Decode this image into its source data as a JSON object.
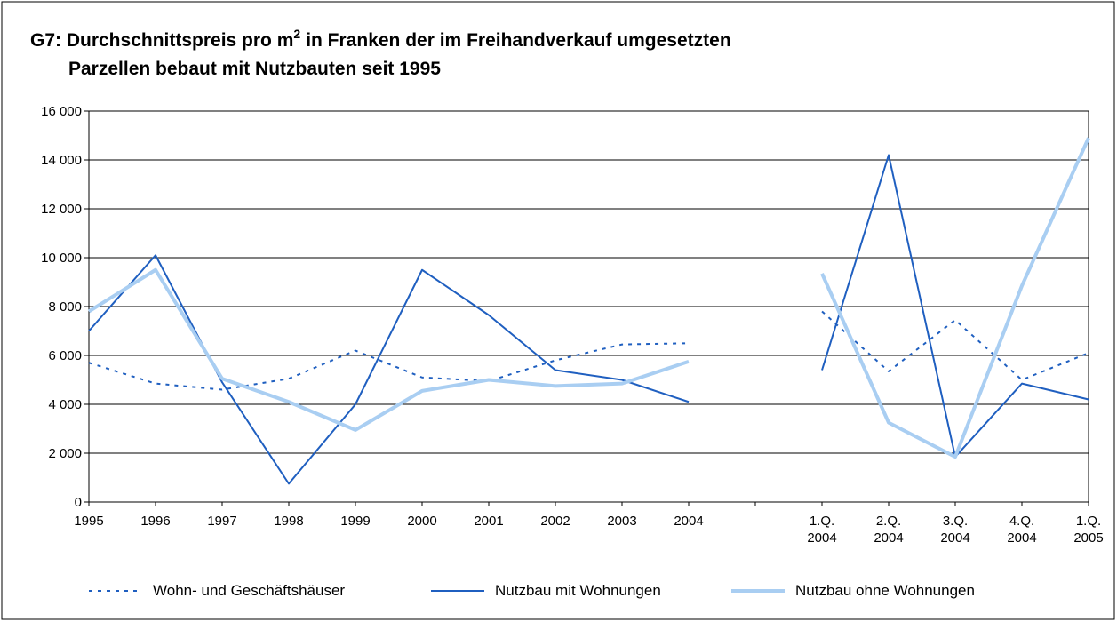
{
  "chart_data": {
    "type": "line",
    "title": {
      "line1_start": "G7: Durchschnittspreis pro m",
      "line1_sup": "2",
      "line1_end": "in Franken der im Freihandverkauf umgesetzten",
      "line2": "Parzellen bebaut mit Nutzbauten seit 1995"
    },
    "categories": [
      "1995",
      "1996",
      "1997",
      "1998",
      "1999",
      "2000",
      "2001",
      "2002",
      "2003",
      "2004",
      null,
      "1.Q. 2004",
      "2.Q. 2004",
      "3.Q. 2004",
      "4.Q. 2004",
      "1.Q. 2005"
    ],
    "series": [
      {
        "name": "Wohn- und Geschäftshäuser",
        "color": "#1f5fc0",
        "dash": true,
        "width": 2,
        "values": [
          5700,
          4850,
          4600,
          5050,
          6200,
          5100,
          4950,
          5800,
          6450,
          6500,
          null,
          7800,
          5350,
          7450,
          5000,
          6100
        ]
      },
      {
        "name": "Nutzbau mit Wohnungen",
        "color": "#1f5fc0",
        "dash": false,
        "width": 2,
        "values": [
          7000,
          10100,
          4900,
          750,
          4000,
          9500,
          7650,
          5400,
          5000,
          4100,
          null,
          5400,
          14200,
          1850,
          4850,
          4200
        ]
      },
      {
        "name": "Nutzbau ohne Wohnungen",
        "color": "#a9cef2",
        "dash": false,
        "width": 4,
        "values": [
          7800,
          9500,
          5050,
          4100,
          2950,
          4550,
          5000,
          4750,
          4850,
          5750,
          null,
          9350,
          3250,
          1850,
          8850,
          14900
        ]
      }
    ],
    "ylim": [
      0,
      16000
    ],
    "yticks": [
      0,
      {
        "value": 2000,
        "label": "2 000"
      },
      {
        "value": 4000,
        "label": "4 000"
      },
      {
        "value": 6000,
        "label": "6 000"
      },
      {
        "value": 8000,
        "label": "8 000"
      },
      {
        "value": 10000,
        "label": "10 000"
      },
      {
        "value": 12000,
        "label": "12 000"
      },
      {
        "value": 14000,
        "label": "14 000"
      },
      {
        "value": 16000,
        "label": "16 000"
      }
    ],
    "grid": true,
    "legend": "bottom"
  }
}
